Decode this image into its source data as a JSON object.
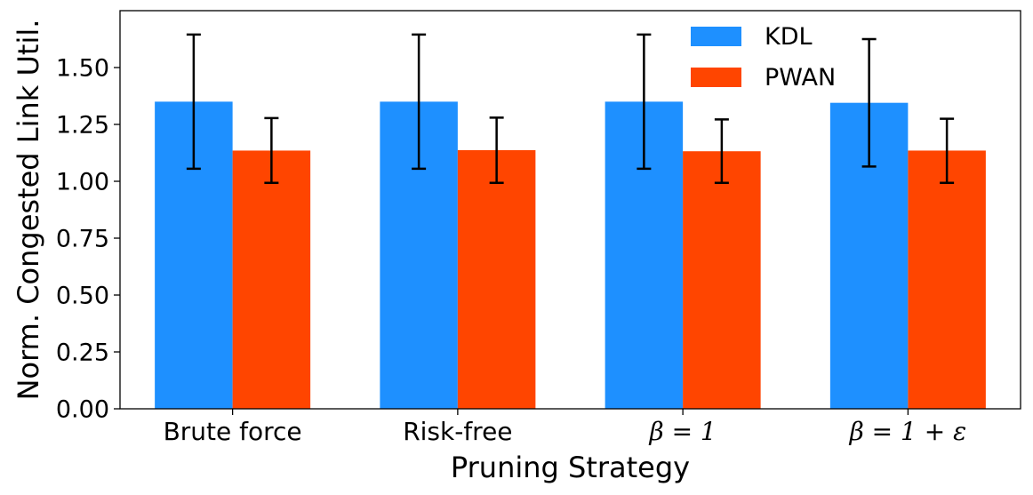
{
  "chart_data": {
    "type": "bar",
    "title": "",
    "xlabel": "Pruning Strategy",
    "ylabel": "Norm. Congested Link Util.",
    "ylim": [
      0,
      1.75
    ],
    "yticks": [
      "0.00",
      "0.25",
      "0.50",
      "0.75",
      "1.00",
      "1.25",
      "1.50"
    ],
    "categories": [
      "Brute force",
      "Risk-free",
      "β = 1",
      "β = 1 + ε"
    ],
    "legend_position": "top-right",
    "series": [
      {
        "name": "KDL",
        "color": "#1e90ff",
        "values": [
          1.35,
          1.35,
          1.35,
          1.345
        ],
        "err_low": [
          1.055,
          1.055,
          1.055,
          1.065
        ],
        "err_high": [
          1.645,
          1.645,
          1.645,
          1.625
        ]
      },
      {
        "name": "PWAN",
        "color": "#ff4500",
        "values": [
          1.135,
          1.137,
          1.132,
          1.135
        ],
        "err_low": [
          0.993,
          0.993,
          0.993,
          0.993
        ],
        "err_high": [
          1.278,
          1.28,
          1.272,
          1.275
        ]
      }
    ]
  }
}
